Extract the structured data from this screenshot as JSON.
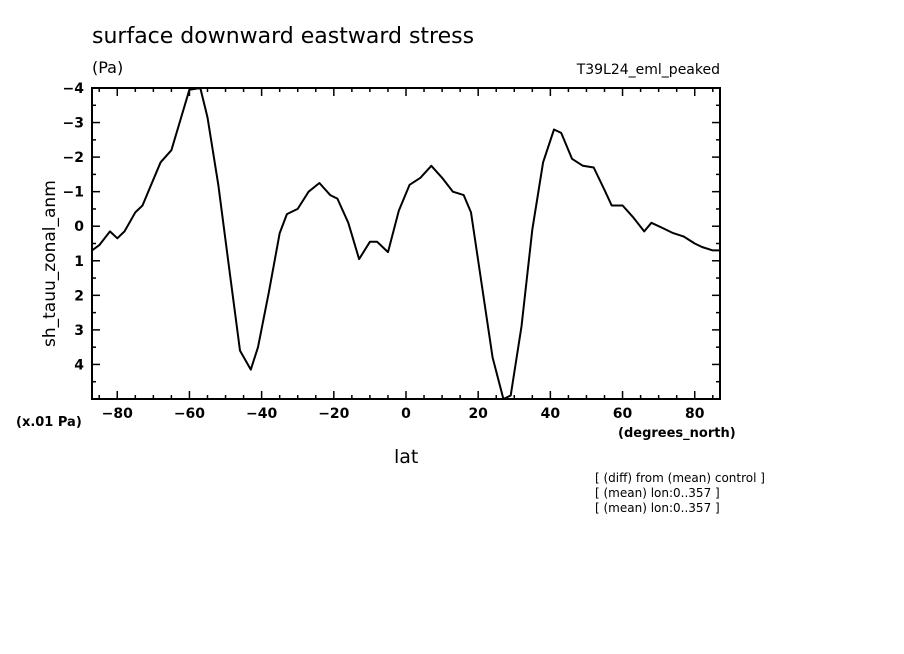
{
  "header": {
    "title": "surface downward eastward stress",
    "units": "(Pa)",
    "run_name": "T39L24_eml_peaked"
  },
  "footnotes": {
    "scale": "(x.01 Pa)",
    "x_units": "(degrees_north)",
    "lines": [
      "[ (diff) from (mean) control ]",
      "[ (mean) lon:0..357 ]",
      "[ (mean) lon:0..357 ]"
    ]
  },
  "colors": {
    "line": "#000000",
    "background": "#ffffff"
  },
  "chart_data": {
    "type": "line",
    "title": "surface downward eastward stress",
    "xlabel": "lat",
    "ylabel": "sh_tauu_zonal_anm",
    "xlim": [
      -87,
      87
    ],
    "ylim": [
      5,
      -4
    ],
    "y_axis_inverted": true,
    "xticks": [
      -80,
      -60,
      -40,
      -20,
      0,
      20,
      40,
      60,
      80
    ],
    "yticks": [
      -4,
      -3,
      -2,
      -1,
      0,
      1,
      2,
      3,
      4
    ],
    "grid": false,
    "legend": "none",
    "series": [
      {
        "x": [
          -87,
          -85,
          -82,
          -80,
          -78,
          -75,
          -73,
          -71,
          -68,
          -65,
          -63,
          -60,
          -57,
          -55,
          -52,
          -49,
          -46,
          -43,
          -41,
          -38,
          -35,
          -33,
          -30,
          -27,
          -24,
          -21,
          -19,
          -16,
          -13,
          -10,
          -8,
          -5,
          -2,
          1,
          4,
          7,
          10,
          13,
          16,
          18,
          21,
          24,
          27,
          29,
          32,
          35,
          38,
          41,
          43,
          46,
          49,
          52,
          55,
          57,
          60,
          63,
          66,
          68,
          71,
          74,
          77,
          80,
          82,
          85,
          87
        ],
        "y": [
          0.7,
          0.55,
          0.15,
          0.35,
          0.15,
          -0.4,
          -0.6,
          -1.1,
          -1.85,
          -2.2,
          -2.9,
          -3.95,
          -4.05,
          -3.15,
          -1.2,
          1.2,
          3.6,
          4.15,
          3.5,
          1.9,
          0.2,
          -0.35,
          -0.5,
          -1.0,
          -1.25,
          -0.9,
          -0.8,
          -0.1,
          0.95,
          0.45,
          0.45,
          0.75,
          -0.45,
          -1.2,
          -1.4,
          -1.75,
          -1.4,
          -1.0,
          -0.9,
          -0.4,
          1.7,
          3.8,
          5.05,
          4.9,
          2.9,
          0.1,
          -1.85,
          -2.8,
          -2.7,
          -1.95,
          -1.75,
          -1.7,
          -1.05,
          -0.6,
          -0.6,
          -0.25,
          0.15,
          -0.1,
          0.05,
          0.2,
          0.3,
          0.5,
          0.6,
          0.7,
          0.7
        ]
      }
    ]
  }
}
